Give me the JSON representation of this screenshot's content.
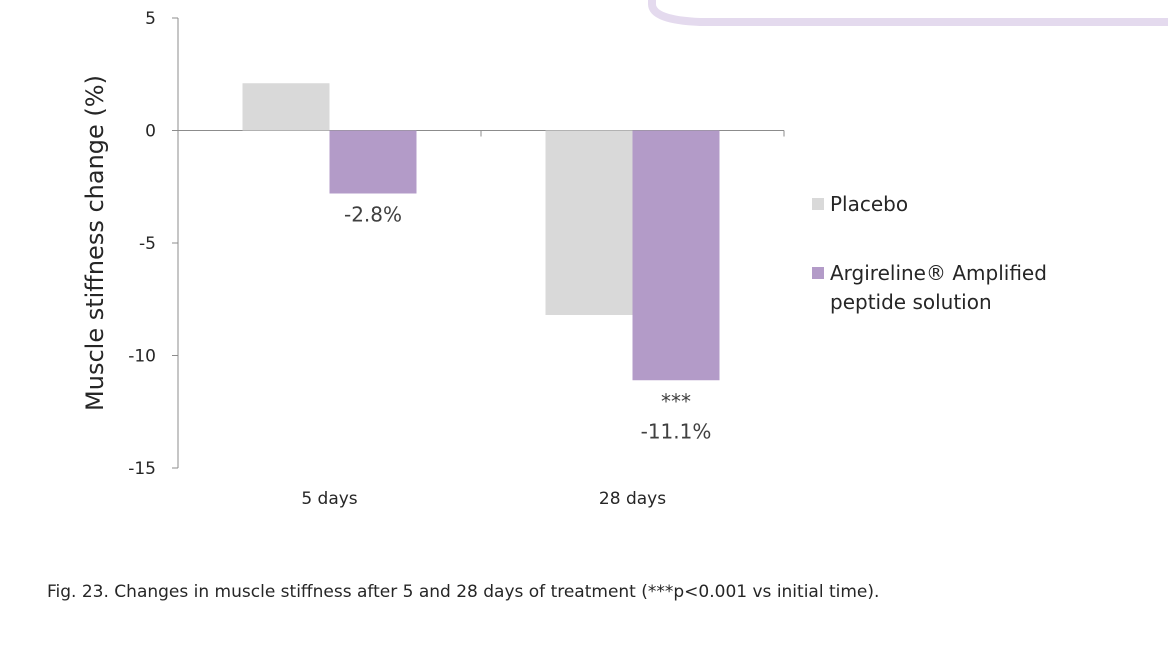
{
  "chart_data": {
    "type": "bar",
    "categories": [
      "5 days",
      "28 days"
    ],
    "series": [
      {
        "name": "Placebo",
        "values": [
          2.1,
          -8.2
        ],
        "color": "#d9d9d9"
      },
      {
        "name": "Argireline® Amplified peptide solution",
        "values": [
          -2.8,
          -11.1
        ],
        "color": "#b39bc8"
      }
    ],
    "ylabel": "Muscle stiffness change (%)",
    "xlabel": "",
    "ylim": [
      -15,
      5
    ],
    "yticks": [
      5,
      0,
      -5,
      -10,
      -15
    ],
    "grid": false,
    "legend": "right",
    "annotations": [
      {
        "category": "5 days",
        "series": "Argireline® Amplified peptide solution",
        "lines": [
          "-2.8%"
        ]
      },
      {
        "category": "28 days",
        "series": "Argireline® Amplified peptide solution",
        "lines": [
          "***",
          "-11.1%"
        ]
      }
    ]
  },
  "legend": [
    {
      "lines": [
        "Placebo"
      ],
      "color": "#d9d9d9"
    },
    {
      "lines": [
        "Argireline® Amplified",
        "peptide solution"
      ],
      "color": "#b39bc8"
    }
  ],
  "caption": "Fig. 23. Changes in muscle stiffness after 5 and 28 days of treatment (***p<0.001 vs initial time)."
}
